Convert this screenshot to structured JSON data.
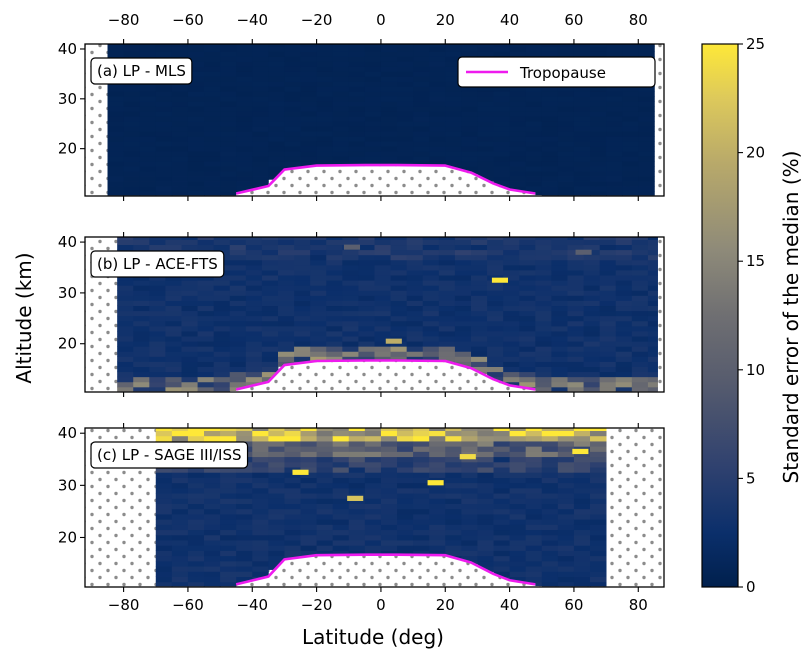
{
  "chart_data": {
    "type": "heatmap",
    "xlabel": "Latitude (deg)",
    "ylabel": "Altitude (km)",
    "xlim": [
      -92,
      88
    ],
    "x_ticks": [
      "−80",
      "−60",
      "−40",
      "−20",
      "0",
      "20",
      "40",
      "60",
      "80"
    ],
    "y_ticks": [
      "20",
      "30",
      "40"
    ],
    "colorbar": {
      "label": "Standard error of the median (%)",
      "range": [
        0,
        25
      ],
      "ticks": [
        "0",
        "5",
        "10",
        "15",
        "20",
        "25"
      ],
      "colormap": "cividis"
    },
    "legend": {
      "label": "Tropopause",
      "color": "#ee1bee",
      "placement": "top-right"
    },
    "tropopause": {
      "lat": [
        -45,
        -35,
        -30,
        -20,
        -5,
        5,
        20,
        28,
        35,
        40,
        48
      ],
      "alt": [
        11,
        12.5,
        15.8,
        16.6,
        16.7,
        16.7,
        16.6,
        15.2,
        13,
        11.8,
        11
      ]
    },
    "panels": [
      {
        "label": "(a) LP - MLS",
        "lat_range": [
          -85,
          85
        ],
        "alt_range": [
          10.5,
          41
        ],
        "typical_error_pct": 0.5
      },
      {
        "label": "(b) LP - ACE-FTS",
        "lat_range": [
          -82,
          86
        ],
        "alt_range": [
          10.5,
          41
        ],
        "typical_error_pct": 2,
        "highlights": [
          {
            "lat": 37,
            "alt": 32.5,
            "value": 25
          },
          {
            "lat": 4,
            "alt": 20.5,
            "value": 20
          },
          {
            "lat": -9,
            "alt": 39,
            "value": 10
          },
          {
            "lat": 63,
            "alt": 38,
            "value": 10
          }
        ]
      },
      {
        "label": "(c) LP - SAGE III/ISS",
        "lat_range": [
          -70,
          70
        ],
        "alt_range": [
          10.5,
          41
        ],
        "typical_error_pct": 2,
        "highlights": [
          {
            "lat": -25,
            "alt": 32.5,
            "value": 25
          },
          {
            "lat": -8,
            "alt": 27.5,
            "value": 22
          },
          {
            "lat": 17,
            "alt": 30.5,
            "value": 25
          },
          {
            "lat": 27,
            "alt": 35.5,
            "value": 24
          },
          {
            "lat": 62,
            "alt": 36.5,
            "value": 25
          }
        ]
      }
    ]
  }
}
